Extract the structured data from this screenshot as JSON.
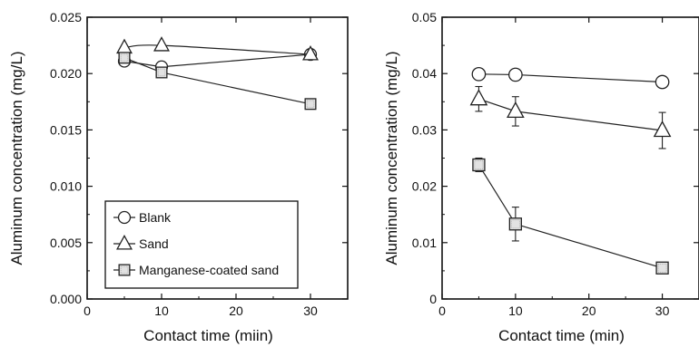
{
  "chart_data": [
    {
      "type": "line",
      "xlabel": "Contact time (miin)",
      "ylabel": "Aluminum concentration (mg/L)",
      "xlim": [
        0,
        35
      ],
      "ylim": [
        0,
        0.025
      ],
      "xticks": [
        0,
        10,
        20,
        30
      ],
      "xtick_labels": [
        "0",
        "10",
        "20",
        "30"
      ],
      "yticks": [
        0,
        0.005,
        0.01,
        0.015,
        0.02,
        0.025
      ],
      "ytick_labels": [
        "0.000",
        "0.005",
        "0.010",
        "0.015",
        "0.020",
        "0.025"
      ],
      "grid": false,
      "legend": "bottom-left",
      "series": [
        {
          "name": "Blank",
          "marker": "circle",
          "x": [
            5,
            10,
            30
          ],
          "y": [
            0.0211,
            0.0206,
            0.0217
          ]
        },
        {
          "name": "Sand",
          "marker": "triangle",
          "x": [
            5,
            10,
            30
          ],
          "y": [
            0.0223,
            0.0225,
            0.0217
          ]
        },
        {
          "name": "Manganese-coated sand",
          "marker": "square",
          "x": [
            5,
            10,
            30
          ],
          "y": [
            0.0214,
            0.0201,
            0.0173
          ]
        }
      ]
    },
    {
      "type": "line",
      "xlabel": "Contact time (min)",
      "ylabel": "Aluminum concentration (mg/L)",
      "xlim": [
        0,
        35
      ],
      "ylim": [
        0,
        0.05
      ],
      "xticks": [
        0,
        10,
        20,
        30
      ],
      "xtick_labels": [
        "0",
        "10",
        "20",
        "30"
      ],
      "yticks": [
        0,
        0.01,
        0.02,
        0.03,
        0.04,
        0.05
      ],
      "ytick_labels": [
        "0",
        "0.01",
        "0.02",
        "0.03",
        "0.04",
        "0.05"
      ],
      "grid": false,
      "series": [
        {
          "name": "",
          "marker": "circle",
          "x": [
            5,
            10,
            30
          ],
          "y": [
            0.0399,
            0.0398,
            0.0385
          ],
          "err": [
            0,
            0,
            0
          ]
        },
        {
          "name": "",
          "marker": "triangle",
          "x": [
            5,
            10,
            30
          ],
          "y": [
            0.0355,
            0.0333,
            0.0299
          ],
          "err": [
            0.0022,
            0.0026,
            0.0032
          ]
        },
        {
          "name": "",
          "marker": "square",
          "x": [
            5,
            10,
            30
          ],
          "y": [
            0.0238,
            0.0133,
            0.0055
          ],
          "err": [
            0.0012,
            0.003,
            0
          ]
        }
      ]
    }
  ]
}
